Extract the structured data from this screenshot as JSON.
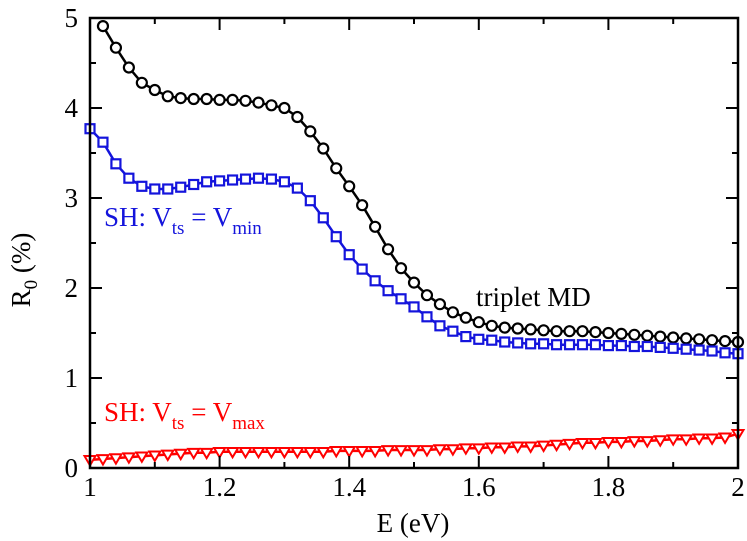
{
  "chart_data": {
    "type": "line",
    "xlabel": "E (eV)",
    "ylabel_main": "R",
    "ylabel_sub": "0",
    "ylabel_rest": " (%)",
    "xlim": [
      1,
      2
    ],
    "ylim": [
      0,
      5
    ],
    "xticks": [
      1,
      1.2,
      1.4,
      1.6,
      1.8,
      2
    ],
    "xtick_labels": [
      "1",
      "1.2",
      "1.4",
      "1.6",
      "1.8",
      "2"
    ],
    "yticks": [
      0,
      1,
      2,
      3,
      4,
      5
    ],
    "ytick_labels": [
      "0",
      "1",
      "2",
      "3",
      "4",
      "5"
    ],
    "grid": false,
    "series": [
      {
        "name": "triplet MD",
        "marker": "circle",
        "color": "#000000",
        "x": [
          1.02,
          1.04,
          1.06,
          1.08,
          1.1,
          1.12,
          1.14,
          1.16,
          1.18,
          1.2,
          1.22,
          1.24,
          1.26,
          1.28,
          1.3,
          1.32,
          1.34,
          1.36,
          1.38,
          1.4,
          1.42,
          1.44,
          1.46,
          1.48,
          1.5,
          1.52,
          1.54,
          1.56,
          1.58,
          1.6,
          1.62,
          1.64,
          1.66,
          1.68,
          1.7,
          1.72,
          1.74,
          1.76,
          1.78,
          1.8,
          1.82,
          1.84,
          1.86,
          1.88,
          1.9,
          1.92,
          1.94,
          1.96,
          1.98,
          2.0
        ],
        "y": [
          4.91,
          4.67,
          4.45,
          4.28,
          4.2,
          4.13,
          4.11,
          4.1,
          4.1,
          4.09,
          4.09,
          4.08,
          4.06,
          4.03,
          4.0,
          3.9,
          3.74,
          3.55,
          3.33,
          3.13,
          2.92,
          2.68,
          2.43,
          2.22,
          2.06,
          1.92,
          1.82,
          1.73,
          1.67,
          1.62,
          1.58,
          1.56,
          1.55,
          1.54,
          1.53,
          1.52,
          1.52,
          1.52,
          1.51,
          1.5,
          1.49,
          1.48,
          1.47,
          1.46,
          1.45,
          1.44,
          1.43,
          1.42,
          1.41,
          1.4
        ]
      },
      {
        "name": "SH: Vts = Vmin",
        "marker": "square",
        "color": "#1414dc",
        "x": [
          1.0,
          1.02,
          1.04,
          1.06,
          1.08,
          1.1,
          1.12,
          1.14,
          1.16,
          1.18,
          1.2,
          1.22,
          1.24,
          1.26,
          1.28,
          1.3,
          1.32,
          1.34,
          1.36,
          1.38,
          1.4,
          1.42,
          1.44,
          1.46,
          1.48,
          1.5,
          1.52,
          1.54,
          1.56,
          1.58,
          1.6,
          1.62,
          1.64,
          1.66,
          1.68,
          1.7,
          1.72,
          1.74,
          1.76,
          1.78,
          1.8,
          1.82,
          1.84,
          1.86,
          1.88,
          1.9,
          1.92,
          1.94,
          1.96,
          1.98,
          2.0
        ],
        "y": [
          3.77,
          3.62,
          3.38,
          3.22,
          3.13,
          3.1,
          3.1,
          3.12,
          3.15,
          3.18,
          3.19,
          3.2,
          3.21,
          3.22,
          3.21,
          3.18,
          3.11,
          2.97,
          2.78,
          2.57,
          2.37,
          2.21,
          2.08,
          1.97,
          1.88,
          1.79,
          1.68,
          1.58,
          1.52,
          1.46,
          1.43,
          1.42,
          1.4,
          1.39,
          1.38,
          1.38,
          1.37,
          1.37,
          1.37,
          1.37,
          1.36,
          1.36,
          1.35,
          1.35,
          1.34,
          1.33,
          1.32,
          1.31,
          1.3,
          1.28,
          1.27
        ]
      },
      {
        "name": "SH: Vts = Vmax",
        "marker": "triangle-down",
        "color": "#ff0000",
        "x": [
          1.0,
          1.02,
          1.04,
          1.06,
          1.08,
          1.1,
          1.12,
          1.14,
          1.16,
          1.18,
          1.2,
          1.22,
          1.24,
          1.26,
          1.28,
          1.3,
          1.32,
          1.34,
          1.36,
          1.38,
          1.4,
          1.42,
          1.44,
          1.46,
          1.48,
          1.5,
          1.52,
          1.54,
          1.56,
          1.58,
          1.6,
          1.62,
          1.64,
          1.66,
          1.68,
          1.7,
          1.72,
          1.74,
          1.76,
          1.78,
          1.8,
          1.82,
          1.84,
          1.86,
          1.88,
          1.9,
          1.92,
          1.94,
          1.96,
          1.98,
          2.0
        ],
        "y": [
          0.09,
          0.1,
          0.11,
          0.12,
          0.13,
          0.14,
          0.15,
          0.16,
          0.17,
          0.17,
          0.18,
          0.18,
          0.18,
          0.18,
          0.18,
          0.18,
          0.18,
          0.18,
          0.18,
          0.19,
          0.19,
          0.19,
          0.19,
          0.2,
          0.2,
          0.2,
          0.2,
          0.21,
          0.21,
          0.22,
          0.22,
          0.23,
          0.23,
          0.24,
          0.24,
          0.25,
          0.26,
          0.27,
          0.28,
          0.28,
          0.29,
          0.29,
          0.3,
          0.3,
          0.31,
          0.32,
          0.32,
          0.33,
          0.33,
          0.34,
          0.38
        ]
      }
    ],
    "annotations": [
      {
        "id": "triplet",
        "color": "#000000",
        "main": "triplet MD",
        "sub1": "",
        "mid": "",
        "sub2": ""
      },
      {
        "id": "vmin",
        "color": "#1414dc",
        "main": "SH: V",
        "sub1": "ts",
        "mid": " = V",
        "sub2": "min"
      },
      {
        "id": "vmax",
        "color": "#ff0000",
        "main": "SH: V",
        "sub1": "ts",
        "mid": " = V",
        "sub2": "max"
      }
    ]
  }
}
